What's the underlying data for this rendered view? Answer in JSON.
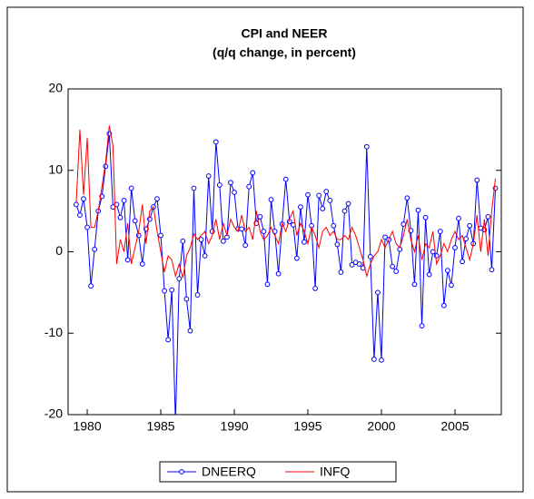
{
  "chart_data": {
    "type": "line",
    "title": "CPI and NEER",
    "subtitle": "(q/q change, in percent)",
    "x": [
      1979.25,
      1979.5,
      1979.75,
      1980,
      1980.25,
      1980.5,
      1980.75,
      1981,
      1981.25,
      1981.5,
      1981.75,
      1982,
      1982.25,
      1982.5,
      1982.75,
      1983,
      1983.25,
      1983.5,
      1983.75,
      1984,
      1984.25,
      1984.5,
      1984.75,
      1985,
      1985.25,
      1985.5,
      1985.75,
      1986,
      1986.25,
      1986.5,
      1986.75,
      1987,
      1987.25,
      1987.5,
      1987.75,
      1988,
      1988.25,
      1988.5,
      1988.75,
      1989,
      1989.25,
      1989.5,
      1989.75,
      1990,
      1990.25,
      1990.5,
      1990.75,
      1991,
      1991.25,
      1991.5,
      1991.75,
      1992,
      1992.25,
      1992.5,
      1992.75,
      1993,
      1993.25,
      1993.5,
      1993.75,
      1994,
      1994.25,
      1994.5,
      1994.75,
      1995,
      1995.25,
      1995.5,
      1995.75,
      1996,
      1996.25,
      1996.5,
      1996.75,
      1997,
      1997.25,
      1997.5,
      1997.75,
      1998,
      1998.25,
      1998.5,
      1998.75,
      1999,
      1999.25,
      1999.5,
      1999.75,
      2000,
      2000.25,
      2000.5,
      2000.75,
      2001,
      2001.25,
      2001.5,
      2001.75,
      2002,
      2002.25,
      2002.5,
      2002.75,
      2003,
      2003.25,
      2003.5,
      2003.75,
      2004,
      2004.25,
      2004.5,
      2004.75,
      2005,
      2005.25,
      2005.5,
      2005.75,
      2006,
      2006.25,
      2006.5,
      2006.75,
      2007,
      2007.25,
      2007.5,
      2007.75
    ],
    "series": [
      {
        "name": "DNEERQ",
        "color": "#0000ff",
        "marker": "circle",
        "values": [
          5.8,
          4.5,
          6.5,
          3.0,
          -4.2,
          0.3,
          5.0,
          6.8,
          10.5,
          14.5,
          5.5,
          5.8,
          4.2,
          6.3,
          -1.0,
          7.8,
          3.8,
          2.0,
          -1.5,
          2.8,
          4.0,
          5.5,
          6.5,
          2.0,
          -4.8,
          -10.8,
          -4.7,
          -21.0,
          -3.3,
          1.3,
          -5.8,
          -9.7,
          7.8,
          -5.3,
          1.5,
          -0.5,
          9.3,
          2.5,
          13.5,
          8.2,
          1.3,
          1.8,
          8.5,
          7.3,
          2.8,
          2.8,
          0.8,
          8.0,
          9.7,
          3.5,
          4.3,
          2.5,
          -4.0,
          6.4,
          2.5,
          -2.7,
          3.4,
          8.9,
          3.7,
          3.3,
          -0.8,
          5.5,
          1.2,
          7.0,
          3.2,
          -4.5,
          6.9,
          5.3,
          7.4,
          6.3,
          3.2,
          0.9,
          -2.5,
          5.0,
          5.9,
          -1.6,
          -1.3,
          -1.5,
          -2.0,
          12.9,
          -0.6,
          -13.2,
          -5.0,
          -13.3,
          1.8,
          1.5,
          -1.8,
          -2.4,
          0.3,
          3.4,
          6.6,
          2.6,
          -4.0,
          5.1,
          -9.1,
          4.2,
          -2.8,
          0.0,
          -0.5,
          2.5,
          -6.6,
          -2.3,
          -4.1,
          0.5,
          4.1,
          -1.2,
          1.6,
          3.2,
          1.0,
          8.8,
          2.9,
          2.7,
          4.3,
          -2.2,
          7.8
        ]
      },
      {
        "name": "INFQ",
        "color": "#ff0000",
        "values": [
          6.0,
          15.0,
          7.0,
          14.0,
          3.0,
          3.0,
          5.0,
          8.0,
          11.0,
          15.5,
          13.0,
          -1.5,
          1.5,
          0.0,
          3.5,
          -1.5,
          0.5,
          2.5,
          5.8,
          1.0,
          5.0,
          5.5,
          2.5,
          0.0,
          -2.5,
          -0.5,
          -1.0,
          -3.0,
          -1.5,
          -3.2,
          -0.5,
          0.5,
          2.2,
          1.5,
          2.0,
          2.5,
          1.0,
          2.0,
          4.0,
          1.5,
          3.5,
          2.0,
          4.0,
          3.0,
          2.5,
          4.5,
          2.5,
          3.0,
          1.5,
          5.0,
          2.5,
          1.5,
          2.0,
          3.0,
          2.0,
          1.0,
          3.5,
          2.5,
          4.0,
          5.0,
          2.0,
          3.5,
          2.5,
          1.0,
          3.0,
          2.0,
          0.5,
          2.5,
          3.0,
          2.0,
          2.5,
          1.5,
          1.5,
          2.0,
          1.5,
          3.0,
          2.0,
          0.5,
          -1.0,
          -3.0,
          -1.5,
          -0.5,
          0.0,
          1.5,
          0.5,
          1.5,
          2.5,
          1.0,
          0.5,
          2.0,
          4.0,
          1.5,
          0.0,
          2.0,
          -1.0,
          1.0,
          0.5,
          2.5,
          -1.5,
          -0.5,
          1.0,
          0.0,
          1.5,
          2.5,
          1.5,
          2.0,
          0.5,
          -1.0,
          1.0,
          4.5,
          0.0,
          4.0,
          -0.5,
          5.0,
          9.0
        ]
      }
    ],
    "xlim": [
      1978.7,
      2008.15
    ],
    "xticks": [
      1980,
      1985,
      1990,
      1995,
      2000,
      2005
    ],
    "ylim": [
      -20,
      20
    ],
    "yticks": [
      -20,
      -10,
      0,
      10,
      20
    ],
    "grid": false,
    "legend": "bottom"
  }
}
